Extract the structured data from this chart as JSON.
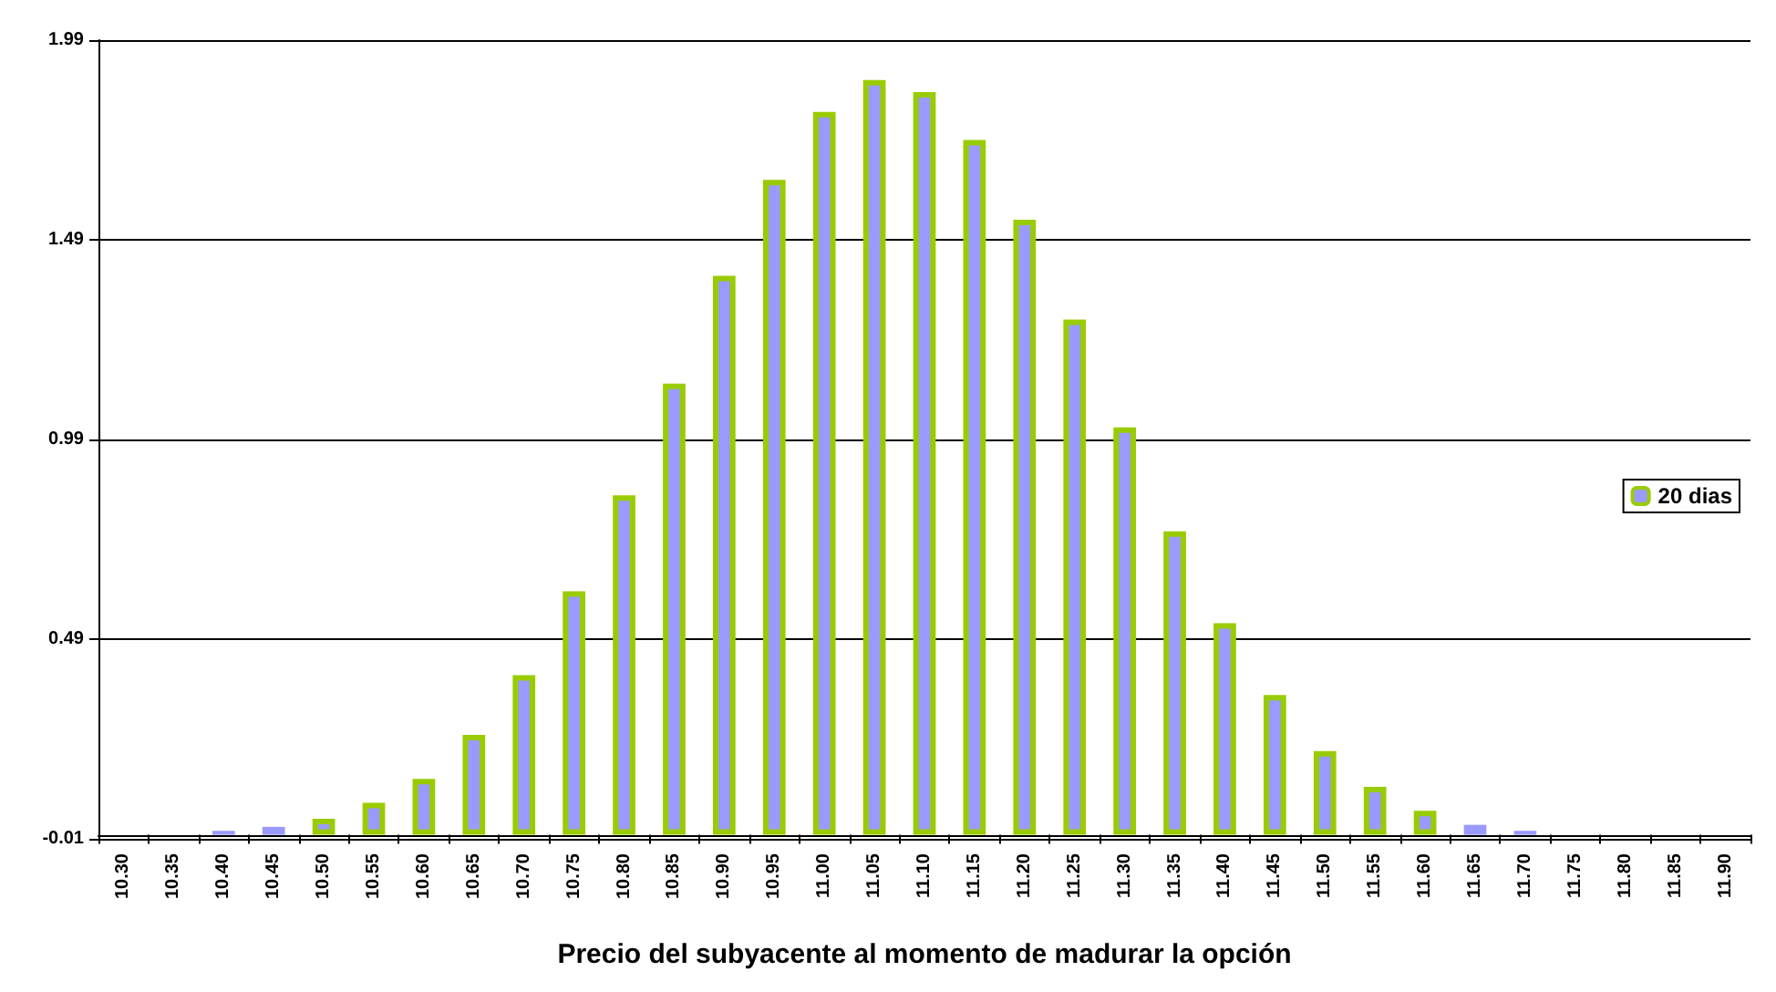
{
  "chart_data": {
    "type": "bar",
    "xlabel": "Precio del subyacente al momento de madurar la opción",
    "categories": [
      "10.30",
      "10.35",
      "10.40",
      "10.45",
      "10.50",
      "10.55",
      "10.60",
      "10.65",
      "10.70",
      "10.75",
      "10.80",
      "10.85",
      "10.90",
      "10.95",
      "11.00",
      "11.05",
      "11.10",
      "11.15",
      "11.20",
      "11.25",
      "11.30",
      "11.35",
      "11.40",
      "11.45",
      "11.50",
      "11.55",
      "11.60",
      "11.65",
      "11.70",
      "11.75",
      "11.80",
      "11.85",
      "11.90"
    ],
    "series": [
      {
        "name": "20 dias",
        "color": "#9999ff",
        "values": [
          0.0,
          0.0,
          0.01,
          0.02,
          0.04,
          0.08,
          0.14,
          0.25,
          0.4,
          0.61,
          0.85,
          1.13,
          1.4,
          1.64,
          1.81,
          1.89,
          1.86,
          1.74,
          1.54,
          1.29,
          1.02,
          0.76,
          0.53,
          0.35,
          0.21,
          0.12,
          0.06,
          0.025,
          0.01,
          0.0,
          0.0,
          0.0,
          0.0
        ]
      }
    ],
    "ylim": [
      -0.01,
      1.99
    ],
    "yticks": [
      -0.01,
      0.49,
      0.99,
      1.49,
      1.99
    ],
    "grid": "y",
    "legend": "right"
  }
}
